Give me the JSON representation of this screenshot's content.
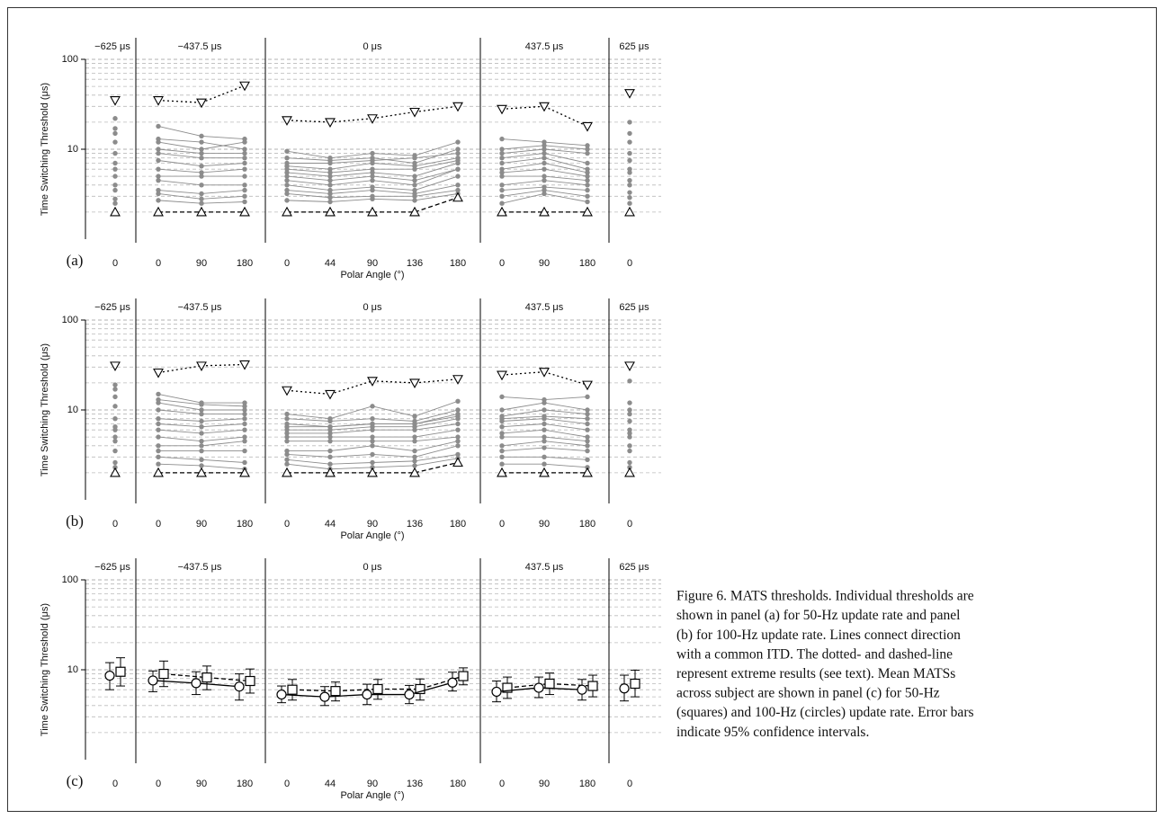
{
  "chart_data": [
    {
      "type": "line",
      "panel_label": "(a)",
      "ylabel": "Time Switching Threshold (μs)",
      "xlabel": "Polar Angle (°)",
      "groups": [
        {
          "label": "−625 μs",
          "categories": [
            0
          ]
        },
        {
          "label": "−437.5 μs",
          "categories": [
            0,
            90,
            180
          ]
        },
        {
          "label": "0 μs",
          "categories": [
            0,
            44,
            90,
            136,
            180
          ]
        },
        {
          "label": "437.5 μs",
          "categories": [
            0,
            90,
            180
          ]
        },
        {
          "label": "625 μs",
          "categories": [
            0
          ]
        }
      ],
      "log_scale": true,
      "ylim": [
        1,
        100
      ],
      "yticks": [
        10,
        100
      ],
      "minor_grid": [
        2,
        3,
        4,
        5,
        6,
        7,
        8,
        9,
        20,
        30,
        40,
        50,
        60,
        70,
        80,
        90
      ],
      "color": "#8c8c8c",
      "series": [
        {
          "values": [
            22,
            18,
            14,
            13,
            9.5,
            8,
            9,
            8.5,
            12,
            13,
            12,
            11,
            20
          ]
        },
        {
          "values": [
            17,
            13,
            12,
            10,
            8,
            7.5,
            8,
            7,
            10,
            10,
            11,
            10,
            15
          ]
        },
        {
          "values": [
            15,
            12,
            10,
            12,
            7,
            7,
            7.5,
            8,
            9,
            9,
            10,
            9,
            12
          ]
        },
        {
          "values": [
            12,
            10,
            9,
            9,
            6.5,
            6,
            7,
            6.5,
            8,
            8,
            9,
            7,
            9
          ]
        },
        {
          "values": [
            9,
            9,
            8,
            8,
            6,
            5.5,
            6,
            6,
            7.5,
            7,
            8,
            6,
            7.5
          ]
        },
        {
          "values": [
            7,
            7.5,
            6.5,
            7,
            5.5,
            5,
            5.5,
            5,
            7,
            6,
            7,
            5.5,
            6
          ]
        },
        {
          "values": [
            6,
            6,
            5.5,
            6,
            5,
            4.5,
            5,
            4.5,
            6,
            5.5,
            6,
            5,
            5.5
          ]
        },
        {
          "values": [
            5,
            5,
            5,
            5,
            4.5,
            4,
            4.5,
            4,
            6,
            5,
            5,
            4.5,
            4.5
          ]
        },
        {
          "values": [
            4,
            4.5,
            4,
            4,
            4,
            3.5,
            3.8,
            3.5,
            5,
            4,
            4.5,
            4,
            4
          ]
        },
        {
          "values": [
            3.5,
            3.5,
            3.2,
            3.5,
            3.5,
            3.2,
            3.5,
            3.2,
            4,
            3.5,
            3.8,
            3.5,
            3.3
          ]
        },
        {
          "values": [
            2.8,
            3.2,
            2.8,
            3,
            3.2,
            2.9,
            3,
            3,
            3.5,
            3,
            3.5,
            3,
            2.9
          ]
        },
        {
          "values": [
            2.5,
            2.7,
            2.5,
            2.6,
            2.7,
            2.6,
            2.8,
            2.7,
            3.2,
            2.5,
            3.2,
            2.6,
            2.5
          ]
        }
      ],
      "extremes": [
        {
          "marker": "triangle-down",
          "dash": "dotted",
          "values": [
            35,
            35,
            33,
            51,
            21,
            20,
            22,
            26,
            30,
            28,
            30,
            18,
            42
          ]
        },
        {
          "marker": "triangle-up",
          "dash": "dashed",
          "values": [
            2,
            2,
            2,
            2,
            2,
            2,
            2,
            2,
            2.9,
            2,
            2,
            2,
            2
          ]
        }
      ]
    },
    {
      "type": "line",
      "panel_label": "(b)",
      "ylabel": "Time Switching Threshold (μs)",
      "xlabel": "Polar Angle (°)",
      "groups": [
        {
          "label": "−625 μs",
          "categories": [
            0
          ]
        },
        {
          "label": "−437.5 μs",
          "categories": [
            0,
            90,
            180
          ]
        },
        {
          "label": "0 μs",
          "categories": [
            0,
            44,
            90,
            136,
            180
          ]
        },
        {
          "label": "437.5 μs",
          "categories": [
            0,
            90,
            180
          ]
        },
        {
          "label": "625 μs",
          "categories": [
            0
          ]
        }
      ],
      "log_scale": true,
      "ylim": [
        1,
        100
      ],
      "yticks": [
        10,
        100
      ],
      "minor_grid": [
        2,
        3,
        4,
        5,
        6,
        7,
        8,
        9,
        20,
        30,
        40,
        50,
        60,
        70,
        80,
        90
      ],
      "color": "#8c8c8c",
      "series": [
        {
          "values": [
            19,
            15,
            12,
            12,
            9,
            8,
            11,
            8.5,
            12.5,
            14,
            13,
            14,
            21
          ]
        },
        {
          "values": [
            17,
            13,
            11.5,
            11,
            8,
            7.5,
            8,
            7.5,
            10,
            10,
            12,
            10,
            12
          ]
        },
        {
          "values": [
            14,
            12,
            10,
            10,
            7,
            6.5,
            7,
            7,
            9,
            8.5,
            10,
            9,
            10
          ]
        },
        {
          "values": [
            11,
            10,
            9,
            9,
            6.5,
            6.5,
            7,
            7,
            8.5,
            8,
            8.5,
            8,
            9
          ]
        },
        {
          "values": [
            8,
            8,
            7.5,
            8,
            6,
            6,
            6.5,
            6.5,
            8,
            7.5,
            8,
            7,
            7.5
          ]
        },
        {
          "values": [
            6.5,
            7,
            6.5,
            7,
            5.5,
            5.5,
            6,
            6,
            7,
            6.5,
            7,
            6,
            6
          ]
        },
        {
          "values": [
            6,
            6,
            5.5,
            6,
            5,
            5,
            5,
            5,
            6,
            5.5,
            6,
            5,
            5.5
          ]
        },
        {
          "values": [
            5,
            5,
            4.5,
            5,
            4.5,
            4.5,
            4.5,
            4.5,
            5,
            5,
            5,
            4.5,
            5
          ]
        },
        {
          "values": [
            4.5,
            4,
            4,
            4.5,
            3.5,
            3.5,
            4,
            3.5,
            4.5,
            4,
            4.5,
            4,
            4
          ]
        },
        {
          "values": [
            3.5,
            3.5,
            3.5,
            3.5,
            3.2,
            3,
            3.2,
            3,
            4,
            3.5,
            3.8,
            3.5,
            3.5
          ]
        },
        {
          "values": [
            2.6,
            3,
            2.8,
            2.6,
            2.8,
            2.5,
            2.6,
            2.7,
            3.2,
            3,
            3,
            2.8,
            2.6
          ]
        },
        {
          "values": [
            2.3,
            2.5,
            2.4,
            2.2,
            2.5,
            2.2,
            2.3,
            2.4,
            2.9,
            2.5,
            2.5,
            2.3,
            2.3
          ]
        }
      ],
      "extremes": [
        {
          "marker": "triangle-down",
          "dash": "dotted",
          "values": [
            31,
            26,
            31,
            32,
            16.5,
            15,
            21,
            20,
            22,
            24.5,
            26.5,
            19,
            31
          ]
        },
        {
          "marker": "triangle-up",
          "dash": "dashed",
          "values": [
            2,
            2,
            2,
            2,
            2,
            2,
            2,
            2,
            2.6,
            2,
            2,
            2,
            2
          ]
        }
      ]
    },
    {
      "type": "line",
      "panel_label": "(c)",
      "ylabel": "Time Switching Threshold (μs)",
      "xlabel": "Polar Angle (°)",
      "groups": [
        {
          "label": "−625 μs",
          "categories": [
            0
          ]
        },
        {
          "label": "−437.5 μs",
          "categories": [
            0,
            90,
            180
          ]
        },
        {
          "label": "0 μs",
          "categories": [
            0,
            44,
            90,
            136,
            180
          ]
        },
        {
          "label": "437.5 μs",
          "categories": [
            0,
            90,
            180
          ]
        },
        {
          "label": "625 μs",
          "categories": [
            0
          ]
        }
      ],
      "log_scale": true,
      "ylim": [
        1,
        100
      ],
      "yticks": [
        10,
        100
      ],
      "minor_grid": [
        2,
        3,
        4,
        5,
        6,
        7,
        8,
        9,
        20,
        30,
        40,
        50,
        60,
        70,
        80,
        90
      ],
      "color": "#000000",
      "series": [
        {
          "marker": "square",
          "dash": "dashed",
          "values": [
            9.5,
            9,
            8.2,
            7.5,
            6,
            5.8,
            6.1,
            6.1,
            8.5,
            6.3,
            7,
            6.6,
            7
          ],
          "ci_low": [
            6.6,
            6.5,
            6,
            5.5,
            4.6,
            4.5,
            4.7,
            4.6,
            6.8,
            4.8,
            5.3,
            5,
            5
          ],
          "ci_high": [
            13.6,
            12.5,
            11,
            10.2,
            7.8,
            7.3,
            7.8,
            7.9,
            10.5,
            8.3,
            9.2,
            8.7,
            9.9
          ]
        },
        {
          "marker": "circle",
          "dash": "solid",
          "values": [
            8.6,
            7.6,
            7.1,
            6.5,
            5.3,
            5,
            5.3,
            5.3,
            7.2,
            5.7,
            6.3,
            6,
            6.2
          ],
          "ci_low": [
            6,
            5.7,
            5.3,
            4.6,
            4.3,
            4,
            4.1,
            4.2,
            5.8,
            4.4,
            4.9,
            4.6,
            4.5
          ],
          "ci_high": [
            12,
            9.7,
            9.5,
            9,
            6.6,
            6.5,
            6.9,
            6.7,
            9.4,
            7.5,
            8.3,
            7.8,
            8.7
          ]
        }
      ]
    }
  ],
  "caption": [
    "Figure 6. MATS thresholds. Individual thresholds are",
    "shown in panel (a) for 50-Hz update rate and panel",
    "(b) for 100-Hz update rate. Lines connect direction",
    "with a common ITD. The dotted- and dashed-line",
    "represent extreme results (see text). Mean MATSs",
    "across subject are shown in panel (c) for 50-Hz",
    "(squares) and 100-Hz (circles) update rate. Error bars",
    "indicate 95% confidence intervals."
  ]
}
